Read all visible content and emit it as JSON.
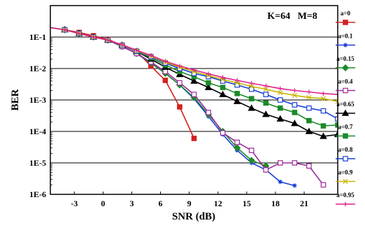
{
  "chart_data": {
    "type": "line",
    "title": "",
    "xlabel": "SNR (dB)",
    "ylabel": "BER",
    "annotation": "K=64   M=8",
    "xlim": [
      -5.5,
      24.5
    ],
    "ylim": [
      1e-06,
      1
    ],
    "yscale": "log",
    "xticks": [
      -3,
      0,
      3,
      6,
      9,
      12,
      15,
      18,
      21
    ],
    "yticks": [
      {
        "value": 0.1,
        "label": "1E-1"
      },
      {
        "value": 0.01,
        "label": "1E-2"
      },
      {
        "value": 0.001,
        "label": "1E-3"
      },
      {
        "value": 0.0001,
        "label": "1E-4"
      },
      {
        "value": 1e-05,
        "label": "1E-5"
      },
      {
        "value": 1e-06,
        "label": "1E-6"
      }
    ],
    "grid": "horizontal",
    "legend_position": "right",
    "series": [
      {
        "name": "a=0",
        "color": "#d42020",
        "marker": "square-filled",
        "x": [
          -5.5,
          -4,
          -2.5,
          -1,
          0.5,
          2,
          3.5,
          5,
          6.5,
          8,
          9.5
        ],
        "y": [
          0.2,
          0.17,
          0.14,
          0.11,
          0.085,
          0.055,
          0.035,
          0.012,
          0.0042,
          0.0006,
          6e-05
        ]
      },
      {
        "name": "a=0.1",
        "color": "#1a3fd6",
        "marker": "star",
        "x": [
          -5.5,
          -4,
          -2.5,
          -1,
          0.5,
          2,
          3.5,
          5,
          6.5,
          8,
          9.5,
          11,
          12.5,
          14,
          15.5,
          17,
          18.5,
          20
        ],
        "y": [
          0.2,
          0.17,
          0.13,
          0.1,
          0.08,
          0.05,
          0.03,
          0.015,
          0.007,
          0.003,
          0.0011,
          0.0003,
          8e-05,
          2.5e-05,
          1e-05,
          6e-06,
          2.5e-06,
          1.9e-06
        ]
      },
      {
        "name": "a=0.15",
        "color": "#1d8a2a",
        "marker": "diamond",
        "x": [
          -5.5,
          -4,
          -2.5,
          -1,
          0.5,
          2,
          3.5,
          5,
          6.5,
          8,
          9.5,
          11,
          12.5,
          14,
          15.5,
          17
        ],
        "y": [
          0.2,
          0.17,
          0.13,
          0.1,
          0.08,
          0.05,
          0.03,
          0.015,
          0.007,
          0.003,
          0.0012,
          0.00035,
          0.0001,
          3e-05,
          1.2e-05,
          8e-06
        ]
      },
      {
        "name": "a=0.4",
        "color": "#9a2a9a",
        "marker": "square-open",
        "x": [
          -5.5,
          -4,
          -2.5,
          -1,
          0.5,
          2,
          3.5,
          5,
          6.5,
          8,
          9.5,
          11,
          12.5,
          14,
          15.5,
          17,
          18.5,
          20,
          21.5,
          23
        ],
        "y": [
          0.2,
          0.17,
          0.13,
          0.1,
          0.08,
          0.05,
          0.03,
          0.016,
          0.008,
          0.0035,
          0.0015,
          0.0004,
          9e-05,
          4.5e-05,
          2.5e-05,
          6e-06,
          1e-05,
          1e-05,
          8e-06,
          2e-06
        ]
      },
      {
        "name": "a=0.65",
        "color": "#000000",
        "marker": "triangle",
        "x": [
          -5.5,
          -4,
          -2.5,
          -1,
          0.5,
          2,
          3.5,
          5,
          6.5,
          8,
          9.5,
          11,
          12.5,
          14,
          15.5,
          17,
          18.5,
          20,
          21.5,
          23,
          24.5
        ],
        "y": [
          0.2,
          0.17,
          0.13,
          0.1,
          0.08,
          0.055,
          0.035,
          0.02,
          0.011,
          0.0065,
          0.004,
          0.0025,
          0.0015,
          0.0009,
          0.00055,
          0.00035,
          0.00025,
          0.00018,
          0.0001,
          7e-05,
          8e-05
        ]
      },
      {
        "name": "a=0.7",
        "color": "#1d8a2a",
        "marker": "square-filled",
        "x": [
          -5.5,
          -4,
          -2.5,
          -1,
          0.5,
          2,
          3.5,
          5,
          6.5,
          8,
          9.5,
          11,
          12.5,
          14,
          15.5,
          17,
          18.5,
          20,
          21.5,
          23,
          24.5
        ],
        "y": [
          0.2,
          0.17,
          0.13,
          0.1,
          0.08,
          0.055,
          0.035,
          0.022,
          0.013,
          0.008,
          0.0055,
          0.0035,
          0.0025,
          0.0016,
          0.0011,
          0.0008,
          0.00055,
          0.0004,
          0.00022,
          0.00015,
          0.00016
        ]
      },
      {
        "name": "a=0.8",
        "color": "#1a3fd6",
        "marker": "square-open",
        "x": [
          -5.5,
          -4,
          -2.5,
          -1,
          0.5,
          2,
          3.5,
          5,
          6.5,
          8,
          9.5,
          11,
          12.5,
          14,
          15.5,
          17,
          18.5,
          20,
          21.5,
          23,
          24.5
        ],
        "y": [
          0.2,
          0.17,
          0.13,
          0.1,
          0.08,
          0.055,
          0.036,
          0.024,
          0.015,
          0.01,
          0.007,
          0.0055,
          0.004,
          0.003,
          0.0022,
          0.0015,
          0.001,
          0.0007,
          0.00055,
          0.00045,
          0.00025
        ]
      },
      {
        "name": "a=0.9",
        "color": "#c8b400",
        "marker": "x",
        "x": [
          -5.5,
          -4,
          -2.5,
          -1,
          0.5,
          2,
          3.5,
          5,
          6.5,
          8,
          9.5,
          11,
          12.5,
          14,
          15.5,
          17,
          18.5,
          20,
          21.5,
          23,
          24.5
        ],
        "y": [
          0.2,
          0.17,
          0.13,
          0.1,
          0.08,
          0.056,
          0.037,
          0.025,
          0.016,
          0.011,
          0.008,
          0.006,
          0.0045,
          0.0035,
          0.0027,
          0.0022,
          0.0017,
          0.0014,
          0.0012,
          0.0011,
          0.0009
        ]
      },
      {
        "name": "a=0.95",
        "color": "#e0208c",
        "marker": "plus",
        "x": [
          -5.5,
          -4,
          -2.5,
          -1,
          0.5,
          2,
          3.5,
          5,
          6.5,
          8,
          9.5,
          11,
          12.5,
          14,
          15.5,
          17,
          18.5,
          20,
          21.5,
          23,
          24.5
        ],
        "y": [
          0.2,
          0.17,
          0.13,
          0.1,
          0.08,
          0.057,
          0.038,
          0.026,
          0.017,
          0.012,
          0.009,
          0.0068,
          0.0052,
          0.0042,
          0.0034,
          0.0028,
          0.0023,
          0.002,
          0.0018,
          0.0016,
          0.0015
        ]
      }
    ]
  }
}
